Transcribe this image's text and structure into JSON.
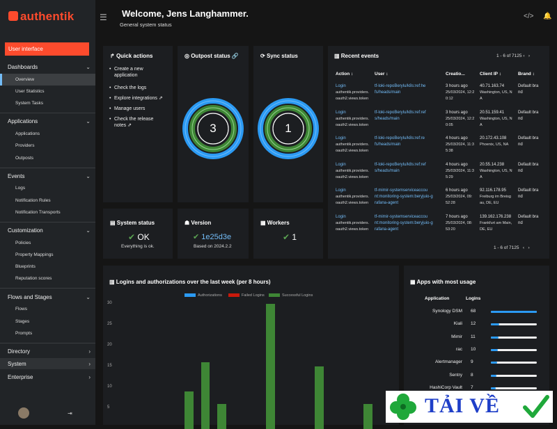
{
  "brand": {
    "name": "authentik",
    "color": "#fd4b2d"
  },
  "sidebar": {
    "user_interface": "User interface",
    "sections": [
      {
        "label": "Dashboards",
        "items": [
          "Overview",
          "User Statistics",
          "System Tasks"
        ]
      },
      {
        "label": "Applications",
        "items": [
          "Applications",
          "Providers",
          "Outposts"
        ]
      },
      {
        "label": "Events",
        "items": [
          "Logs",
          "Notification Rules",
          "Notification Transports"
        ]
      },
      {
        "label": "Customization",
        "items": [
          "Policies",
          "Property Mappings",
          "Blueprints",
          "Reputation scores"
        ]
      },
      {
        "label": "Flows and Stages",
        "items": [
          "Flows",
          "Stages",
          "Prompts"
        ]
      },
      {
        "label": "Directory",
        "items": []
      },
      {
        "label": "System",
        "items": []
      },
      {
        "label": "Enterprise",
        "items": []
      }
    ]
  },
  "header": {
    "title": "Welcome, Jens Langhammer.",
    "subtitle": "General system status"
  },
  "quick_actions": {
    "title": "Quick actions",
    "items": [
      "Create a new",
      "application",
      "Check the logs",
      "Explore integrations",
      "Manage users",
      "Check the release",
      "notes"
    ]
  },
  "outpost_status": {
    "title": "Outpost status",
    "value": "3"
  },
  "sync_status": {
    "title": "Sync status",
    "value": "1"
  },
  "system_status": {
    "title": "System status",
    "value": "OK",
    "sub": "Everything is ok."
  },
  "version": {
    "title": "Version",
    "value": "1e25d3e",
    "sub": "Based on 2024.2.2"
  },
  "workers": {
    "title": "Workers",
    "value": "1"
  },
  "recent_events": {
    "title": "Recent events",
    "pager": "1 - 6 of 7125",
    "columns": [
      "Action",
      "User",
      "Creatio...",
      "Client IP",
      "Brand"
    ],
    "rows": [
      {
        "action1": "Login",
        "action2": "authentik.providers.",
        "action3": "oauth2.views.token",
        "user1": "tf-loki-repoBerylu/k8s:ref:he",
        "user2": "fs/heads/main",
        "time1": "3 hours ago",
        "time2": "25/03/2024, 12:2",
        "time3": "0:12",
        "ip1": "40.71.163.74",
        "ip2": "Washington, US, N",
        "ip3": "A",
        "brand1": "Default bra",
        "brand2": "nd"
      },
      {
        "action1": "Login",
        "action2": "authentik.providers.",
        "action3": "oauth2.views.token",
        "user1": "tf-loki-repoBerylu/k8s:ref:ref",
        "user2": "s/heads/main",
        "time1": "3 hours ago",
        "time2": "25/03/2024, 12:2",
        "time3": "0:05",
        "ip1": "20.51.159.41",
        "ip2": "Washington, US, N",
        "ip3": "A",
        "brand1": "Default bra",
        "brand2": "nd"
      },
      {
        "action1": "Login",
        "action2": "authentik.providers.",
        "action3": "oauth2.views.token",
        "user1": "tf-loki-repoBerylu/k8s:ref:re",
        "user2": "fs/heads/main",
        "time1": "4 hours ago",
        "time2": "25/03/2024, 11:3",
        "time3": "5:38",
        "ip1": "20.172.43.108",
        "ip2": "Phoenix, US, NA",
        "ip3": "",
        "brand1": "Default bra",
        "brand2": "nd"
      },
      {
        "action1": "Login",
        "action2": "authentik.providers.",
        "action3": "oauth2.views.token",
        "user1": "tf-loki-repoBerylu/k8s:ref:ref",
        "user2": "s/heads/main",
        "time1": "4 hours ago",
        "time2": "25/03/2024, 11:3",
        "time3": "5:29",
        "ip1": "20.55.14.238",
        "ip2": "Washington, US, N",
        "ip3": "A",
        "brand1": "Default bra",
        "brand2": "nd"
      },
      {
        "action1": "Login",
        "action2": "authentik.providers.",
        "action3": "oauth2.views.token",
        "user1": "tf-mimir-systemserviceaccou",
        "user2": "nt:monitoring-system:beryjuio-g",
        "user3": "rafana-agent",
        "time1": "6 hours ago",
        "time2": "25/03/2024, 09:",
        "time3": "52:28",
        "ip1": "92.116.178.95",
        "ip2": "Freiburg im Breisg",
        "ip3": "au, DE, EU",
        "brand1": "Default bra",
        "brand2": "nd"
      },
      {
        "action1": "Login",
        "action2": "authentik.providers.",
        "action3": "oauth2.views.token",
        "user1": "tf-mimir-systemserviceaccou",
        "user2": "nt:monitoring-system:beryjuio-g",
        "user3": "rafana-agent",
        "time1": "7 hours ago",
        "time2": "25/03/2024, 08:",
        "time3": "53:20",
        "ip1": "139.162.176.238",
        "ip2": "Frankfurt am Main,",
        "ip3": "DE, EU",
        "brand1": "Default bra",
        "brand2": "nd"
      }
    ]
  },
  "logins_chart": {
    "title": "Logins and authorizations over the last week (per 8 hours)",
    "chart_data": {
      "type": "bar",
      "series": [
        {
          "name": "Authorizations",
          "color": "#2b9af3"
        },
        {
          "name": "Failed Logins",
          "color": "#c9190b"
        },
        {
          "name": "Successful Logins",
          "color": "#3e8635"
        }
      ],
      "yticks": [
        "30",
        "25",
        "20",
        "15",
        "10",
        "5"
      ],
      "successful_values": [
        0,
        0,
        0,
        0,
        9,
        16,
        6,
        0,
        0,
        30,
        0,
        0,
        15,
        0,
        0,
        6,
        0
      ],
      "ylim": [
        0,
        30
      ]
    }
  },
  "apps_usage": {
    "title": "Apps with most usage",
    "columns": [
      "Application",
      "Logins"
    ],
    "rows": [
      {
        "name": "Synology DSM",
        "logins": "68",
        "fraction": 1.0
      },
      {
        "name": "Kiali",
        "logins": "12",
        "fraction": 0.18
      },
      {
        "name": "Mimir",
        "logins": "11",
        "fraction": 0.16
      },
      {
        "name": "rac",
        "logins": "10",
        "fraction": 0.15
      },
      {
        "name": "Alertmanager",
        "logins": "9",
        "fraction": 0.13
      },
      {
        "name": "Sentry",
        "logins": "8",
        "fraction": 0.12
      },
      {
        "name": "HashiCorp Vault",
        "logins": "7",
        "fraction": 0.1
      }
    ]
  },
  "watermark": {
    "text": "TẢI VỀ"
  }
}
